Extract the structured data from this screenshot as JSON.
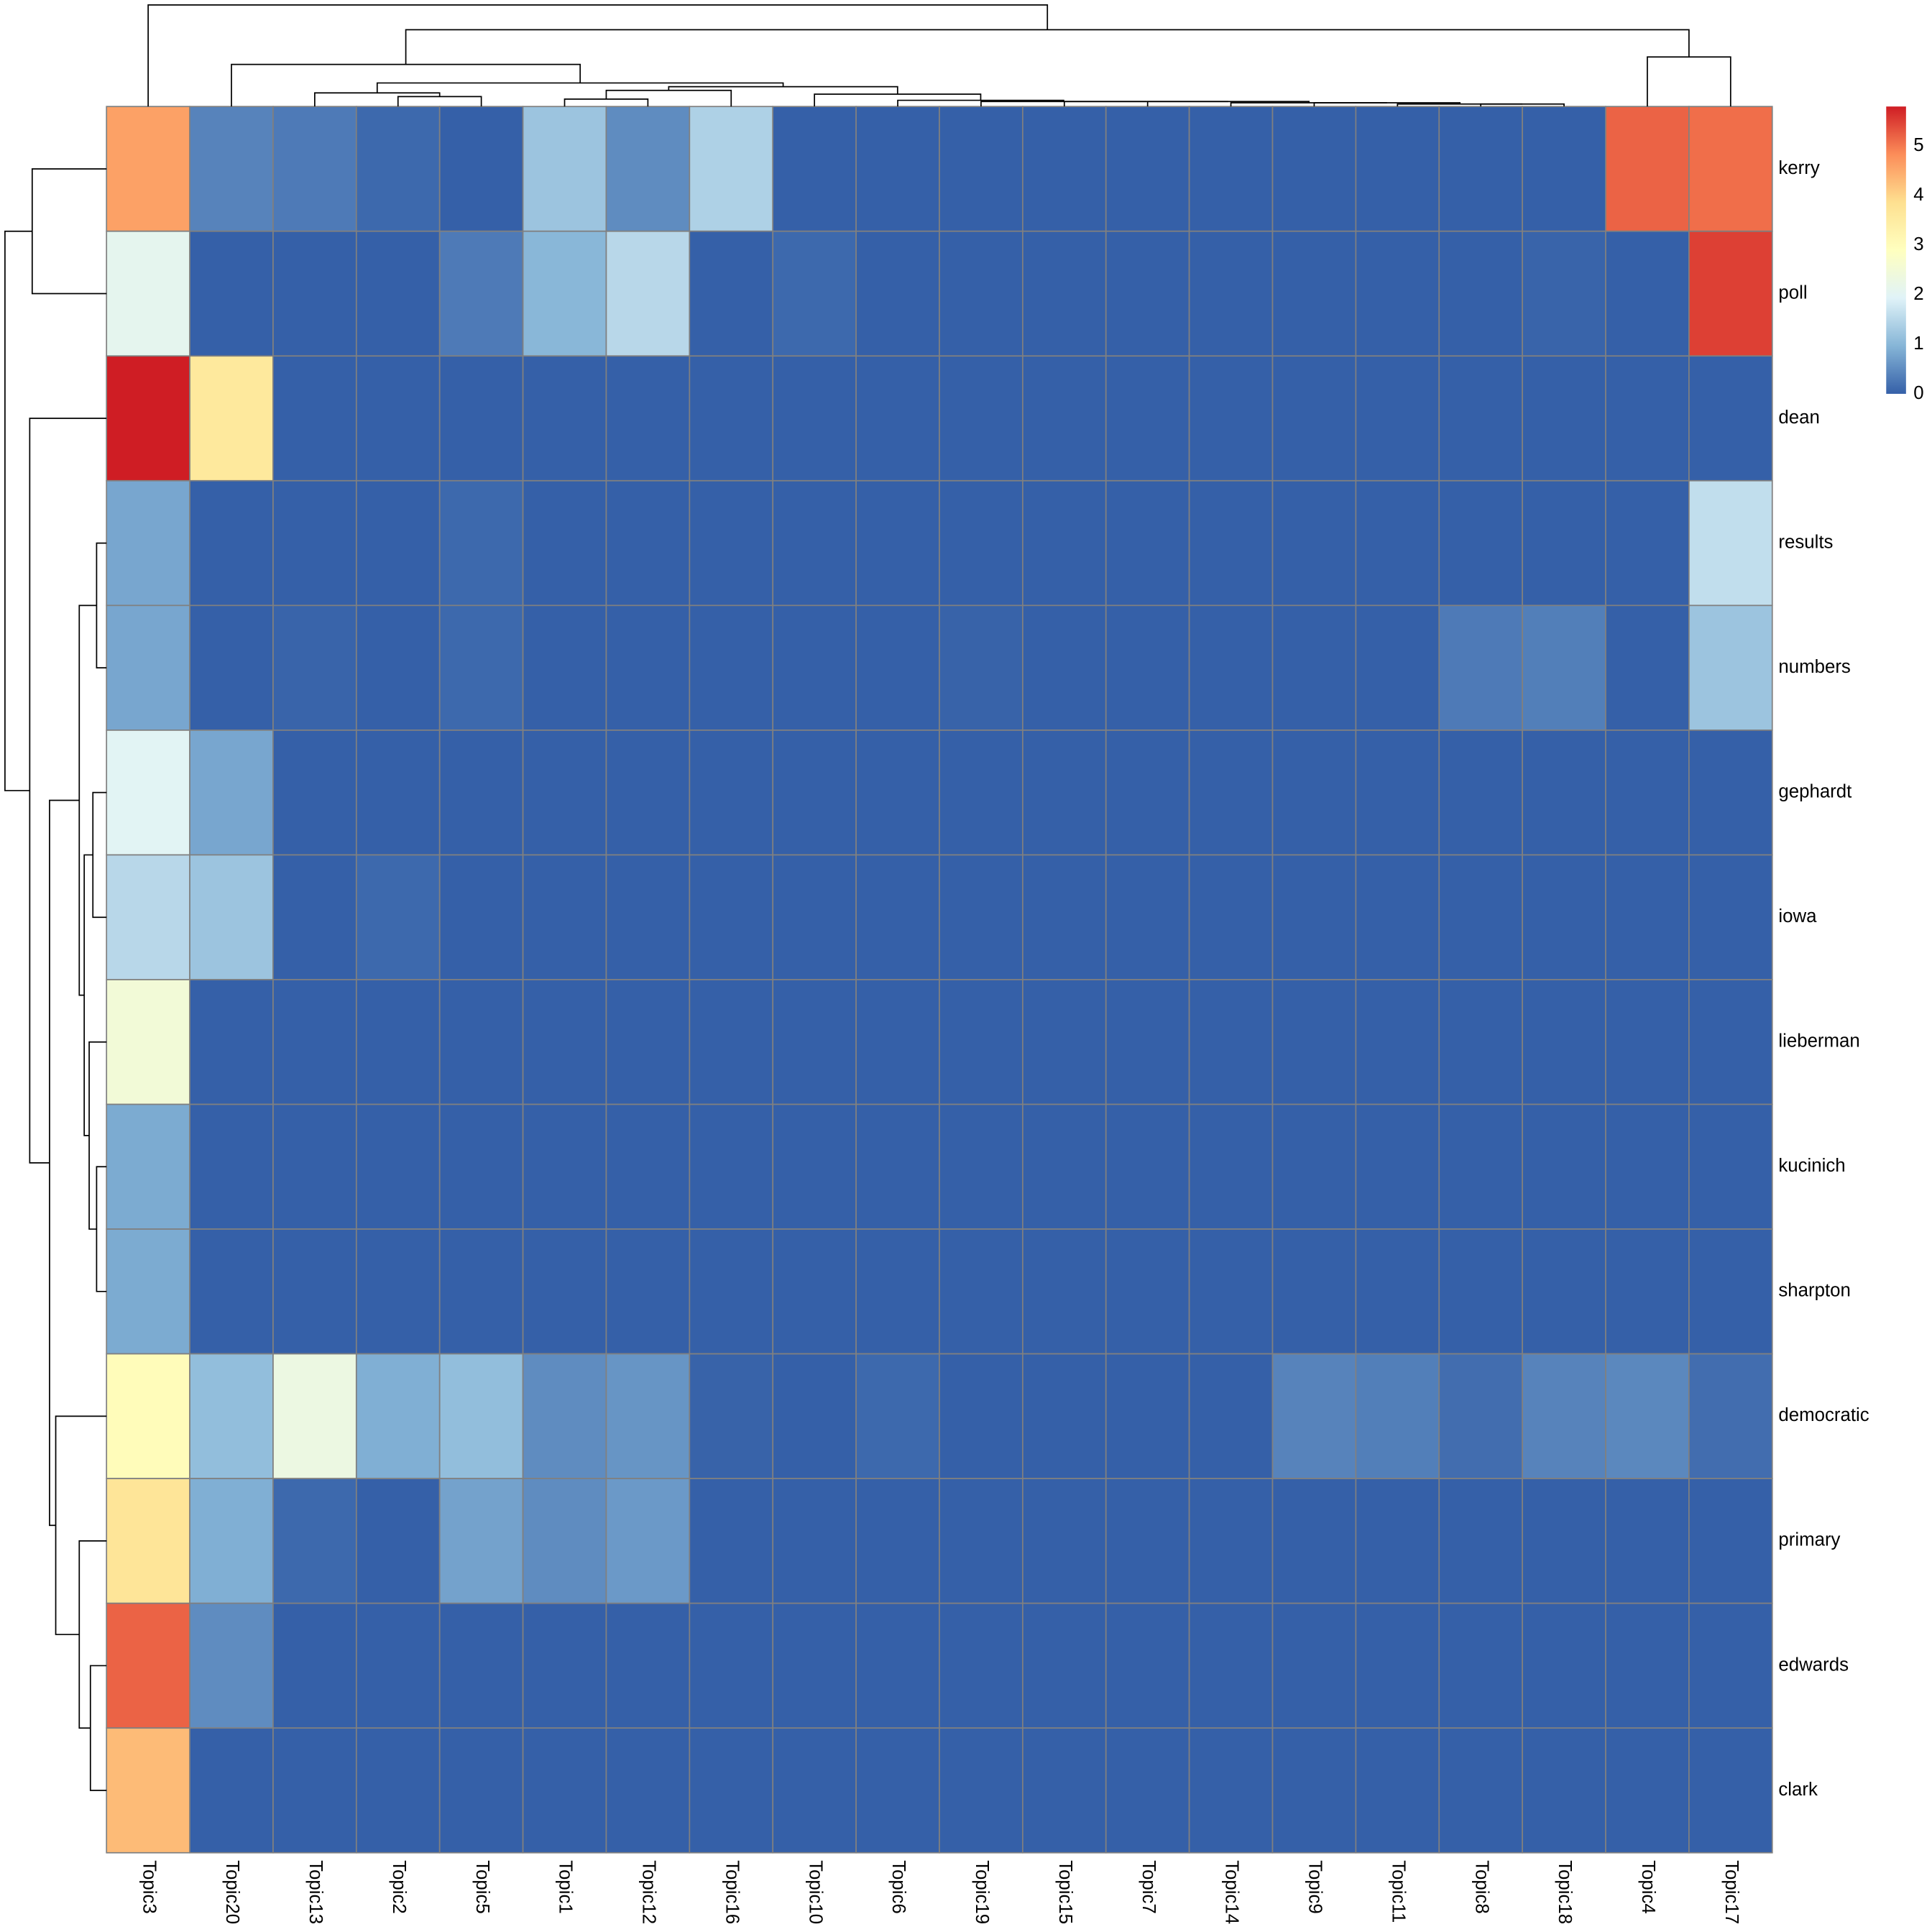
{
  "chart_data": {
    "type": "heatmap",
    "x": [
      "Topic3",
      "Topic20",
      "Topic13",
      "Topic2",
      "Topic5",
      "Topic1",
      "Topic12",
      "Topic16",
      "Topic10",
      "Topic6",
      "Topic19",
      "Topic15",
      "Topic7",
      "Topic14",
      "Topic9",
      "Topic11",
      "Topic8",
      "Topic18",
      "Topic4",
      "Topic17"
    ],
    "y": [
      "kerry",
      "poll",
      "dean",
      "results",
      "numbers",
      "gephardt",
      "iowa",
      "lieberman",
      "kucinich",
      "sharpton",
      "democratic",
      "primary",
      "edwards",
      "clark"
    ],
    "values": [
      [
        4.6,
        0.4,
        0.3,
        0.1,
        0,
        1.2,
        0.5,
        1.4,
        0,
        0,
        0,
        0,
        0,
        0,
        0,
        0,
        0,
        0,
        5.2,
        5.1
      ],
      [
        2.1,
        0,
        0,
        0,
        0.3,
        1.0,
        1.5,
        0,
        0.1,
        0,
        0,
        0,
        0,
        0,
        0,
        0,
        0,
        0.05,
        0,
        5.5
      ],
      [
        5.8,
        3.6,
        0,
        0,
        0,
        0,
        0,
        0,
        0,
        0,
        0,
        0,
        0,
        0,
        0,
        0,
        0,
        0,
        0,
        0
      ],
      [
        0.8,
        0,
        0,
        0,
        0.1,
        0,
        0,
        0,
        0,
        0,
        0,
        0,
        0,
        0,
        0,
        0,
        0,
        0,
        0,
        1.6
      ],
      [
        0.8,
        0,
        0.05,
        0,
        0.1,
        0,
        0,
        0,
        0,
        0,
        0.03,
        0,
        0,
        0,
        0,
        0,
        0.3,
        0.35,
        0,
        1.2
      ],
      [
        2.0,
        0.8,
        0,
        0,
        0,
        0,
        0,
        0,
        0,
        0,
        0,
        0,
        0,
        0,
        0,
        0,
        0,
        0,
        0,
        0
      ],
      [
        1.5,
        1.2,
        0,
        0.1,
        0,
        0,
        0,
        0,
        0,
        0,
        0,
        0,
        0,
        0,
        0,
        0,
        0,
        0,
        0,
        0
      ],
      [
        2.5,
        0,
        0,
        0,
        0,
        0,
        0,
        0,
        0,
        0,
        0,
        0,
        0,
        0,
        0,
        0,
        0,
        0,
        0,
        0
      ],
      [
        0.85,
        0,
        0,
        0,
        0,
        0,
        0,
        0,
        0,
        0,
        0,
        0,
        0,
        0,
        0,
        0,
        0,
        0,
        0,
        0
      ],
      [
        0.85,
        0,
        0,
        0,
        0,
        0,
        0,
        0,
        0,
        0,
        0,
        0,
        0,
        0,
        0,
        0,
        0,
        0,
        0,
        0
      ],
      [
        3.0,
        1.1,
        2.3,
        0.9,
        1.1,
        0.5,
        0.6,
        0.03,
        0,
        0.1,
        0,
        0,
        0,
        0,
        0.4,
        0.35,
        0.15,
        0.4,
        0.45,
        0.15
      ],
      [
        3.7,
        0.9,
        0.1,
        0,
        0.75,
        0.5,
        0.65,
        0,
        0,
        0,
        0,
        0,
        0,
        0,
        0,
        0,
        0,
        0,
        0,
        0
      ],
      [
        5.2,
        0.5,
        0,
        0,
        0,
        0,
        0,
        0,
        0,
        0,
        0,
        0,
        0,
        0,
        0,
        0,
        0,
        0,
        0,
        0
      ],
      [
        4.3,
        0,
        0,
        0,
        0,
        0,
        0,
        0,
        0,
        0,
        0,
        0,
        0,
        0,
        0,
        0,
        0,
        0,
        0,
        0
      ]
    ],
    "zlim": [
      0,
      5.8
    ],
    "zticks": [
      0,
      1,
      2,
      3,
      4,
      5
    ],
    "colors": [
      "#3560a8",
      "#86b5d7",
      "#e0f3f8",
      "#ffffbf",
      "#fee090",
      "#fc8d59",
      "#cf1d24"
    ]
  }
}
